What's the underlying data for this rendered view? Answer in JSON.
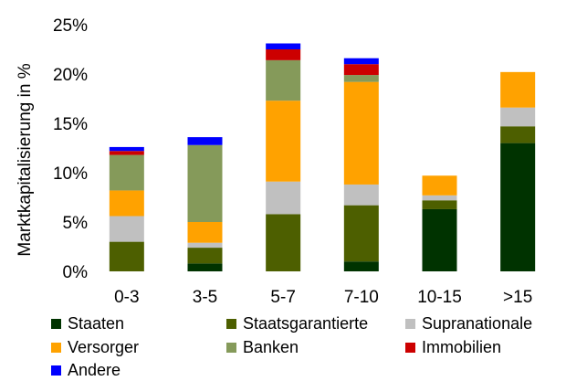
{
  "chart_data": {
    "type": "bar",
    "stacked": true,
    "ylabel": "Marktkapitalisierung in %",
    "xlabel": "",
    "ylim": [
      0,
      25
    ],
    "yticks": [
      "0%",
      "5%",
      "10%",
      "15%",
      "20%",
      "25%"
    ],
    "grid": false,
    "legend": "bottom",
    "categories": [
      "0-3",
      "3-5",
      "5-7",
      "7-10",
      "10-15",
      ">15"
    ],
    "series": [
      {
        "name": "Staaten",
        "color": "#003300",
        "values": [
          0.0,
          0.8,
          0.0,
          1.0,
          6.3,
          13.0
        ]
      },
      {
        "name": "Staatsgarantierte",
        "color": "#4D5F00",
        "values": [
          3.0,
          1.6,
          5.8,
          5.7,
          0.9,
          1.7
        ]
      },
      {
        "name": "Supranationale",
        "color": "#C0C0C0",
        "values": [
          2.6,
          0.5,
          3.3,
          2.1,
          0.5,
          1.9
        ]
      },
      {
        "name": "Versorger",
        "color": "#FFA200",
        "values": [
          2.6,
          2.1,
          8.2,
          10.4,
          2.0,
          3.6
        ]
      },
      {
        "name": "Banken",
        "color": "#859A5A",
        "values": [
          3.6,
          7.8,
          4.1,
          0.7,
          0.0,
          0.0
        ]
      },
      {
        "name": "Immobilien",
        "color": "#CC0000",
        "values": [
          0.4,
          0.0,
          1.1,
          1.1,
          0.0,
          0.0
        ]
      },
      {
        "name": "Andere",
        "color": "#0000FF",
        "values": [
          0.4,
          0.8,
          0.6,
          0.6,
          0.0,
          0.0
        ]
      }
    ]
  }
}
